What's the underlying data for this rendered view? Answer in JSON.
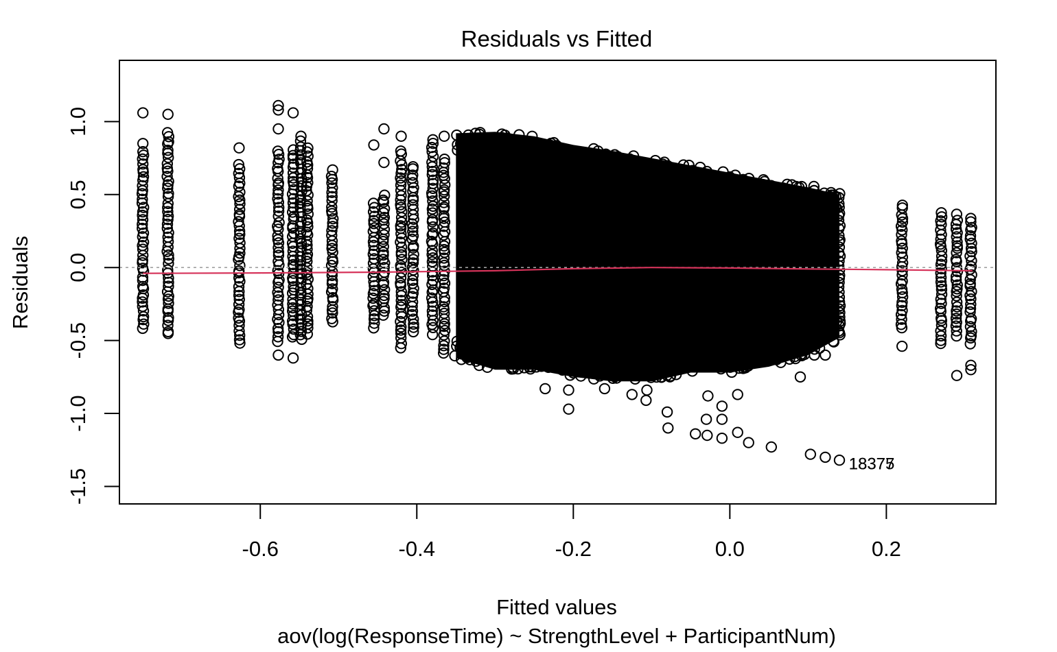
{
  "chart_data": {
    "type": "scatter",
    "title": "Residuals vs Fitted",
    "xlabel": "Fitted values",
    "subtitle": "aov(log(ResponseTime) ~ StrengthLevel + ParticipantNum)",
    "ylabel": "Residuals",
    "xlim": [
      -0.78,
      0.34
    ],
    "ylim": [
      -1.62,
      1.42
    ],
    "xticks": [
      -0.6,
      -0.4,
      -0.2,
      0.0,
      0.2
    ],
    "xtick_labels": [
      "-0.6",
      "-0.4",
      "-0.2",
      "0.0",
      "0.2"
    ],
    "yticks": [
      -1.5,
      -1.0,
      -0.5,
      0.0,
      0.5,
      1.0
    ],
    "ytick_labels": [
      "-1.5",
      "-1.0",
      "-0.5",
      "0.0",
      "0.5",
      "1.0"
    ],
    "grid": false,
    "reference_line": {
      "y": 0.0,
      "style": "dotted",
      "color": "#a0a0a0"
    },
    "smoother": {
      "color": "#d6335a",
      "x": [
        -0.75,
        -0.6,
        -0.45,
        -0.3,
        -0.2,
        -0.1,
        0.0,
        0.1,
        0.2,
        0.31
      ],
      "y": [
        -0.04,
        -0.037,
        -0.032,
        -0.022,
        -0.008,
        0.0,
        -0.003,
        -0.01,
        -0.015,
        -0.022
      ]
    },
    "annotations": [
      {
        "text": "18377",
        "x": 0.152,
        "y": -1.345
      },
      {
        "text": "18375",
        "x": 0.152,
        "y": -1.345
      }
    ],
    "columns": [
      {
        "x": -0.75,
        "ymin": -0.42,
        "ymax": 0.8,
        "outliers": [
          1.06,
          0.85
        ]
      },
      {
        "x": -0.718,
        "ymin": -0.46,
        "ymax": 0.93,
        "outliers": [
          1.05
        ]
      },
      {
        "x": -0.627,
        "ymin": -0.52,
        "ymax": 0.7,
        "outliers": [
          0.82
        ]
      },
      {
        "x": -0.577,
        "ymin": -0.5,
        "ymax": 0.8,
        "outliers": [
          1.11,
          1.08,
          0.95,
          -0.6
        ]
      },
      {
        "x": -0.558,
        "ymin": -0.48,
        "ymax": 0.8,
        "outliers": [
          1.06,
          -0.62
        ]
      },
      {
        "x": -0.548,
        "ymin": -0.5,
        "ymax": 0.86,
        "outliers": [
          0.9
        ]
      },
      {
        "x": -0.54,
        "ymin": -0.45,
        "ymax": 0.82,
        "outliers": []
      },
      {
        "x": -0.508,
        "ymin": -0.38,
        "ymax": 0.66,
        "outliers": []
      },
      {
        "x": -0.455,
        "ymin": -0.42,
        "ymax": 0.45,
        "outliers": [
          0.84
        ]
      },
      {
        "x": -0.442,
        "ymin": -0.33,
        "ymax": 0.5,
        "outliers": [
          0.95,
          0.72
        ]
      },
      {
        "x": -0.42,
        "ymin": -0.55,
        "ymax": 0.8,
        "outliers": [
          0.9
        ]
      },
      {
        "x": -0.405,
        "ymin": -0.45,
        "ymax": 0.7,
        "outliers": []
      },
      {
        "x": -0.38,
        "ymin": -0.45,
        "ymax": 0.88,
        "outliers": []
      },
      {
        "x": -0.365,
        "ymin": -0.59,
        "ymax": 0.75,
        "outliers": [
          0.9
        ]
      }
    ],
    "cloud": {
      "xrange": [
        -0.35,
        0.14
      ],
      "upper": {
        "x": [
          -0.35,
          -0.3,
          -0.25,
          -0.2,
          -0.15,
          -0.1,
          -0.05,
          0.0,
          0.05,
          0.1,
          0.14
        ],
        "y": [
          0.92,
          0.93,
          0.9,
          0.84,
          0.8,
          0.75,
          0.7,
          0.65,
          0.6,
          0.55,
          0.5
        ]
      },
      "lower": {
        "x": [
          -0.35,
          -0.3,
          -0.25,
          -0.2,
          -0.15,
          -0.1,
          -0.05,
          0.0,
          0.05,
          0.1,
          0.14
        ],
        "y": [
          -0.62,
          -0.7,
          -0.7,
          -0.75,
          -0.78,
          -0.78,
          -0.72,
          -0.72,
          -0.68,
          -0.6,
          -0.48
        ]
      },
      "outliers": [
        {
          "x": -0.236,
          "y": -0.83
        },
        {
          "x": -0.206,
          "y": -0.97
        },
        {
          "x": -0.206,
          "y": -0.84
        },
        {
          "x": -0.16,
          "y": -0.83
        },
        {
          "x": -0.125,
          "y": -0.87
        },
        {
          "x": -0.107,
          "y": -0.91
        },
        {
          "x": -0.106,
          "y": -0.84
        },
        {
          "x": -0.079,
          "y": -0.6
        },
        {
          "x": -0.08,
          "y": -0.99
        },
        {
          "x": -0.079,
          "y": -1.1
        },
        {
          "x": -0.044,
          "y": -1.14
        },
        {
          "x": -0.029,
          "y": -1.15
        },
        {
          "x": -0.03,
          "y": -1.04
        },
        {
          "x": -0.028,
          "y": -0.88
        },
        {
          "x": -0.01,
          "y": -1.17
        },
        {
          "x": -0.01,
          "y": -1.04
        },
        {
          "x": -0.01,
          "y": -0.95
        },
        {
          "x": 0.01,
          "y": -1.13
        },
        {
          "x": 0.01,
          "y": -0.87
        },
        {
          "x": 0.024,
          "y": -1.2
        },
        {
          "x": 0.053,
          "y": -1.23
        },
        {
          "x": 0.103,
          "y": -1.28
        },
        {
          "x": 0.122,
          "y": -1.3
        },
        {
          "x": 0.14,
          "y": -1.32
        },
        {
          "x": 0.09,
          "y": -0.75
        },
        {
          "x": 0.122,
          "y": -0.6
        }
      ]
    },
    "right_columns": [
      {
        "x": 0.108,
        "ymin": -0.55,
        "ymax": 0.55,
        "outliers": [
          -0.6
        ]
      },
      {
        "x": 0.13,
        "ymin": -0.45,
        "ymax": 0.52,
        "outliers": []
      },
      {
        "x": 0.14,
        "ymin": -0.47,
        "ymax": 0.5,
        "outliers": []
      },
      {
        "x": 0.22,
        "ymin": -0.42,
        "ymax": 0.43,
        "outliers": [
          -0.54
        ]
      },
      {
        "x": 0.27,
        "ymin": -0.52,
        "ymax": 0.38,
        "outliers": []
      },
      {
        "x": 0.29,
        "ymin": -0.47,
        "ymax": 0.36,
        "outliers": [
          -0.74
        ]
      },
      {
        "x": 0.308,
        "ymin": -0.52,
        "ymax": 0.34,
        "outliers": [
          -0.67,
          -0.7
        ]
      }
    ]
  }
}
